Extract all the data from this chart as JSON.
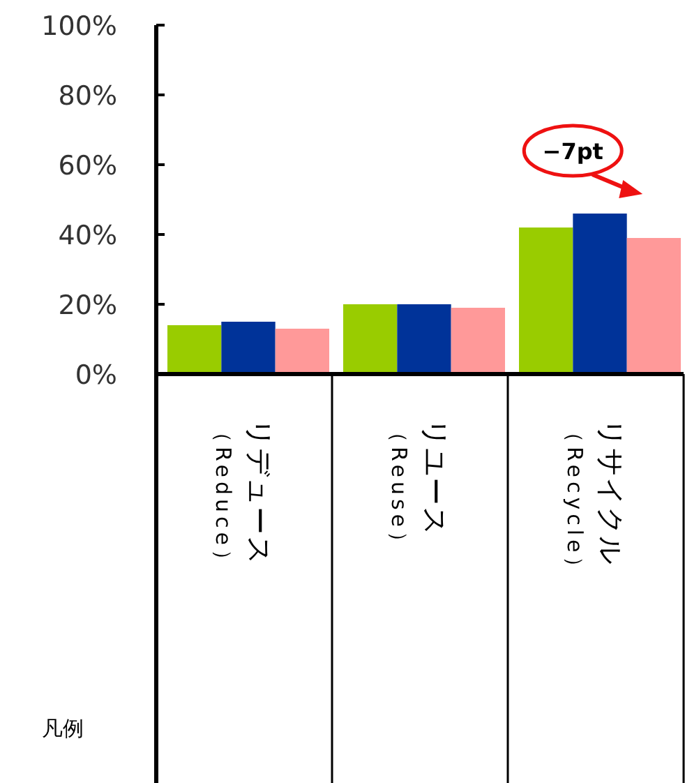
{
  "chart_data": {
    "type": "bar",
    "categories": [
      "リデュース（Reduce）",
      "リユース（Reuse）",
      "リサイクル（Recycle）"
    ],
    "series": [
      {
        "color": "#99cc00",
        "values": [
          14,
          20,
          42
        ]
      },
      {
        "color": "#003399",
        "values": [
          15,
          20,
          46
        ]
      },
      {
        "color": "#ff9999",
        "values": [
          13,
          19,
          39
        ]
      }
    ],
    "ylim": [
      0,
      100
    ],
    "yticks": [
      {
        "value": 0,
        "label": "0%"
      },
      {
        "value": 20,
        "label": "20%"
      },
      {
        "value": 40,
        "label": "40%"
      },
      {
        "value": 60,
        "label": "60%"
      },
      {
        "value": 80,
        "label": "80%"
      },
      {
        "value": 100,
        "label": "100%"
      }
    ],
    "grid": false,
    "legend": false,
    "annotations": [
      {
        "text": "−7pt",
        "x": "リサイクル（Recycle）",
        "y": 46
      },
      "凡例"
    ]
  }
}
